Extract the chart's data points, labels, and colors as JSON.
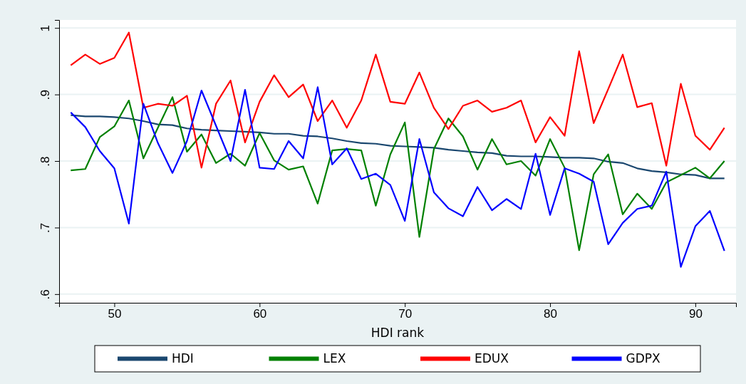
{
  "chart_data": {
    "type": "line",
    "xlabel": "HDI rank",
    "x": [
      47,
      48,
      49,
      50,
      51,
      52,
      53,
      54,
      55,
      56,
      57,
      58,
      59,
      60,
      61,
      62,
      63,
      64,
      65,
      66,
      67,
      68,
      69,
      70,
      71,
      72,
      73,
      74,
      75,
      76,
      77,
      78,
      79,
      80,
      81,
      82,
      83,
      84,
      85,
      86,
      87,
      88,
      89,
      90,
      91,
      92
    ],
    "series": [
      {
        "name": "HDI",
        "color": "#1a476f",
        "values": [
          0.869,
          0.867,
          0.867,
          0.866,
          0.864,
          0.86,
          0.855,
          0.854,
          0.849,
          0.847,
          0.846,
          0.845,
          0.844,
          0.843,
          0.841,
          0.841,
          0.838,
          0.837,
          0.834,
          0.83,
          0.827,
          0.826,
          0.823,
          0.822,
          0.821,
          0.82,
          0.817,
          0.815,
          0.813,
          0.812,
          0.808,
          0.807,
          0.807,
          0.806,
          0.805,
          0.805,
          0.804,
          0.799,
          0.797,
          0.789,
          0.785,
          0.783,
          0.78,
          0.779,
          0.774,
          0.774
        ]
      },
      {
        "name": "LEX",
        "color": "#008000",
        "values": [
          0.786,
          0.788,
          0.836,
          0.852,
          0.891,
          0.804,
          0.85,
          0.896,
          0.814,
          0.84,
          0.797,
          0.811,
          0.793,
          0.842,
          0.801,
          0.787,
          0.792,
          0.736,
          0.816,
          0.818,
          0.816,
          0.733,
          0.81,
          0.858,
          0.686,
          0.818,
          0.864,
          0.837,
          0.787,
          0.833,
          0.795,
          0.8,
          0.778,
          0.833,
          0.79,
          0.666,
          0.78,
          0.81,
          0.72,
          0.751,
          0.728,
          0.768,
          0.779,
          0.79,
          0.774,
          0.8
        ]
      },
      {
        "name": "EDUX",
        "color": "#ff0000",
        "values": [
          0.944,
          0.96,
          0.946,
          0.955,
          0.993,
          0.88,
          0.886,
          0.883,
          0.898,
          0.79,
          0.886,
          0.921,
          0.828,
          0.889,
          0.929,
          0.896,
          0.915,
          0.86,
          0.891,
          0.85,
          0.891,
          0.96,
          0.889,
          0.886,
          0.933,
          0.88,
          0.848,
          0.883,
          0.891,
          0.874,
          0.88,
          0.891,
          0.828,
          0.866,
          0.838,
          0.965,
          0.857,
          0.908,
          0.96,
          0.881,
          0.887,
          0.793,
          0.916,
          0.838,
          0.817,
          0.85
        ]
      },
      {
        "name": "GDPX",
        "color": "#0000ff",
        "values": [
          0.873,
          0.851,
          0.815,
          0.789,
          0.706,
          0.886,
          0.827,
          0.782,
          0.83,
          0.906,
          0.853,
          0.8,
          0.907,
          0.79,
          0.788,
          0.83,
          0.804,
          0.911,
          0.795,
          0.819,
          0.773,
          0.781,
          0.764,
          0.71,
          0.833,
          0.753,
          0.729,
          0.717,
          0.761,
          0.726,
          0.743,
          0.728,
          0.811,
          0.719,
          0.789,
          0.781,
          0.769,
          0.675,
          0.707,
          0.728,
          0.733,
          0.784,
          0.641,
          0.702,
          0.725,
          0.665
        ]
      }
    ],
    "xlim": [
      46.2,
      92.8
    ],
    "xticks": [
      50,
      60,
      70,
      80,
      90
    ],
    "ylim": [
      0.587,
      1.012
    ],
    "yticks": [
      {
        "value": 0.6,
        "label": ".6"
      },
      {
        "value": 0.7,
        "label": ".7"
      },
      {
        "value": 0.8,
        "label": ".8"
      },
      {
        "value": 0.9,
        "label": ".9"
      },
      1
    ],
    "grid": "y",
    "legend": "bottom",
    "marker": "none",
    "line_style": "solid"
  }
}
